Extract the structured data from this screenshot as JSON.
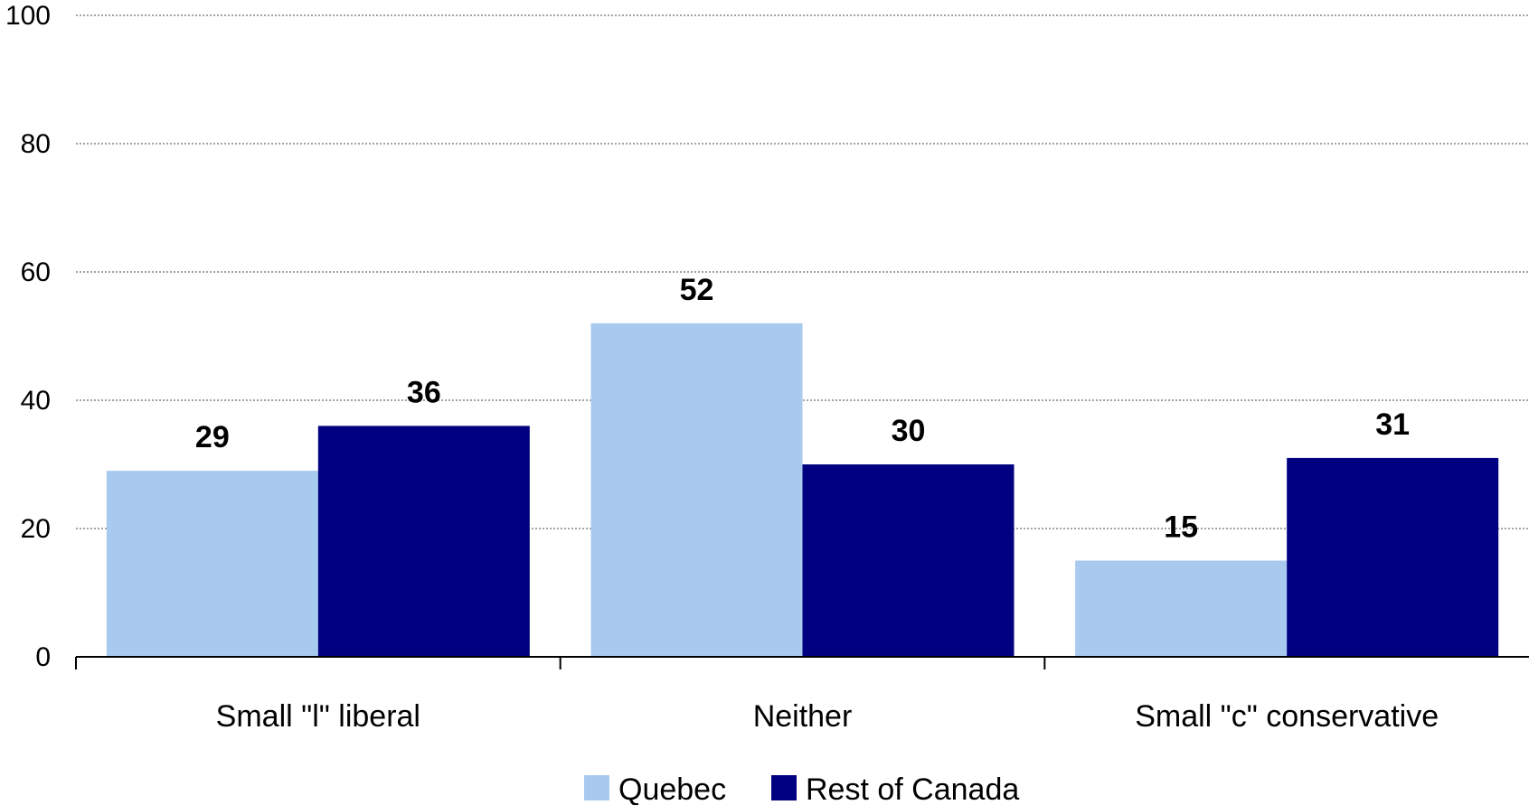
{
  "chart_data": {
    "type": "bar",
    "title": "",
    "xlabel": "",
    "ylabel": "",
    "ylim": [
      0,
      100
    ],
    "yticks": [
      0,
      20,
      40,
      60,
      80,
      100
    ],
    "grid": true,
    "legend_position": "bottom",
    "categories": [
      "Small \"l\" liberal",
      "Neither",
      "Small \"c\" conservative"
    ],
    "series": [
      {
        "name": "Quebec",
        "color": "#a8caef",
        "values": [
          29,
          52,
          15
        ]
      },
      {
        "name": "Rest of Canada",
        "color": "#000080",
        "values": [
          36,
          30,
          31
        ]
      }
    ]
  }
}
